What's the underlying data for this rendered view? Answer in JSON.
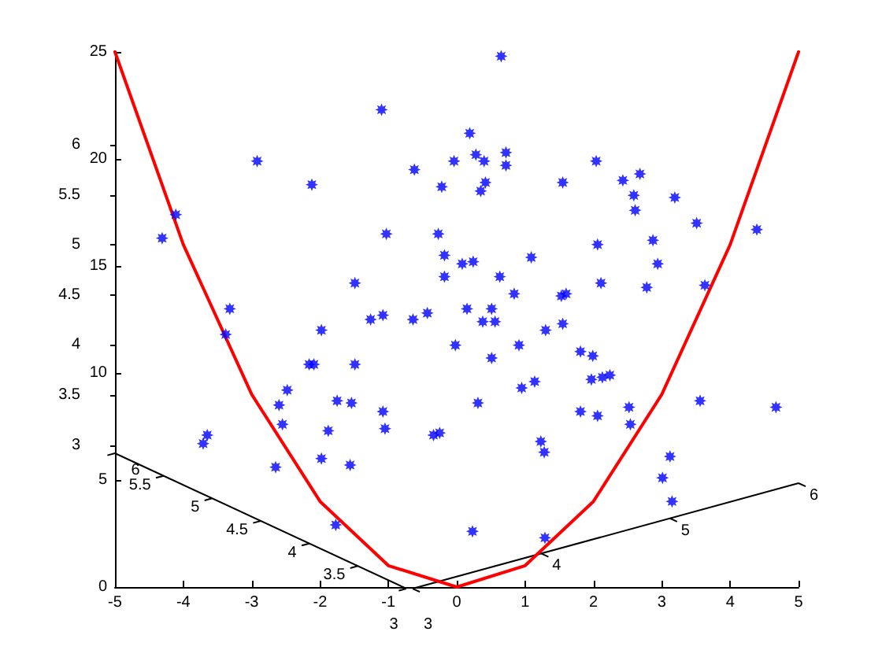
{
  "chart_data": {
    "type": "scatter",
    "marker": "star",
    "xlim": [
      -5,
      5
    ],
    "xticks": [
      -5,
      -4,
      -3,
      -2,
      -1,
      0,
      1,
      2,
      3,
      4,
      5
    ],
    "ylim": [
      0,
      25
    ],
    "yticks": [
      0,
      5,
      10,
      15,
      20,
      25
    ],
    "y2lim": [
      1.58,
      6.93
    ],
    "y2ticks": [
      3,
      3.5,
      4,
      4.5,
      5,
      5.5,
      6
    ],
    "series": [
      {
        "type": "line",
        "marker": "none",
        "color": "#ff0000",
        "x": [
          -5,
          -4,
          -3,
          -2,
          -1,
          0,
          1,
          2,
          3,
          4,
          5
        ],
        "values": [
          25,
          16,
          9,
          4,
          1,
          0,
          1,
          4,
          9,
          16,
          25
        ]
      },
      {
        "color": "#0000ff",
        "x": [
          0.65,
          -1.1,
          0.19,
          -2.92,
          -0.62,
          -0.04,
          0.28,
          0.4,
          0.72,
          0.72,
          -2.12,
          -0.22,
          0.42,
          0.35,
          -1.03,
          -0.27,
          -0.18,
          0.08,
          0.24,
          1.09,
          -0.18,
          0.63,
          -1.49,
          0.84,
          -1.26,
          -1.08,
          -0.64,
          -0.43,
          0.15,
          0.51,
          0.38,
          0.56,
          -1.98,
          1.3,
          -0.02,
          0.91,
          -2.16,
          -2.09,
          -1.49,
          0.51,
          -2.48,
          -2.6,
          -2.55,
          -1.75,
          -1.54,
          -1.88,
          -1.08,
          -1.05,
          -0.34,
          -0.25,
          0.31,
          0.95,
          1.14,
          1.23,
          1.28,
          -1.98,
          -2.65,
          -1.56,
          -1.77,
          0.23,
          1.29,
          3.12,
          3.01,
          3.15,
          2.04,
          1.55,
          2.43,
          2.68,
          2.59,
          2.61,
          3.19,
          3.51,
          4.39,
          2.06,
          2.87,
          2.94,
          2.11,
          2.78,
          3.63,
          1.53,
          1.6,
          1.55,
          1.81,
          1.99,
          1.97,
          2.13,
          2.24,
          1.81,
          2.06,
          2.52,
          2.54,
          3.56,
          4.67,
          -4.11,
          -4.31,
          -3.32,
          -3.38,
          -3.65,
          -3.71
        ],
        "values": [
          24.8,
          22.3,
          21.2,
          19.9,
          19.5,
          19.9,
          20.2,
          19.9,
          20.3,
          19.7,
          18.8,
          18.7,
          18.9,
          18.5,
          16.5,
          16.5,
          15.5,
          15.1,
          15.2,
          15.4,
          14.5,
          14.5,
          14.2,
          13.7,
          12.5,
          12.7,
          12.5,
          12.8,
          13.0,
          13.0,
          12.4,
          12.4,
          12.0,
          12.0,
          11.3,
          11.3,
          10.4,
          10.4,
          10.4,
          10.7,
          9.2,
          8.5,
          7.6,
          8.7,
          8.6,
          7.3,
          8.2,
          7.4,
          7.1,
          7.2,
          8.6,
          9.3,
          9.6,
          6.8,
          6.3,
          6.0,
          5.6,
          5.7,
          2.9,
          2.6,
          2.3,
          6.1,
          5.1,
          4.0,
          19.9,
          18.9,
          19.0,
          19.3,
          18.3,
          17.6,
          18.2,
          17.0,
          16.7,
          16.0,
          16.2,
          15.1,
          14.2,
          14.0,
          14.1,
          13.6,
          13.7,
          12.3,
          11.0,
          10.8,
          9.7,
          9.8,
          9.9,
          8.2,
          8.0,
          8.4,
          7.6,
          8.7,
          8.4,
          17.4,
          16.3,
          13.0,
          11.8,
          7.1,
          6.7
        ]
      }
    ],
    "annotations": [
      "6",
      "5.5",
      "5",
      "4.5",
      "4",
      "3.5",
      "3",
      "3",
      "4",
      "5",
      "6"
    ]
  }
}
